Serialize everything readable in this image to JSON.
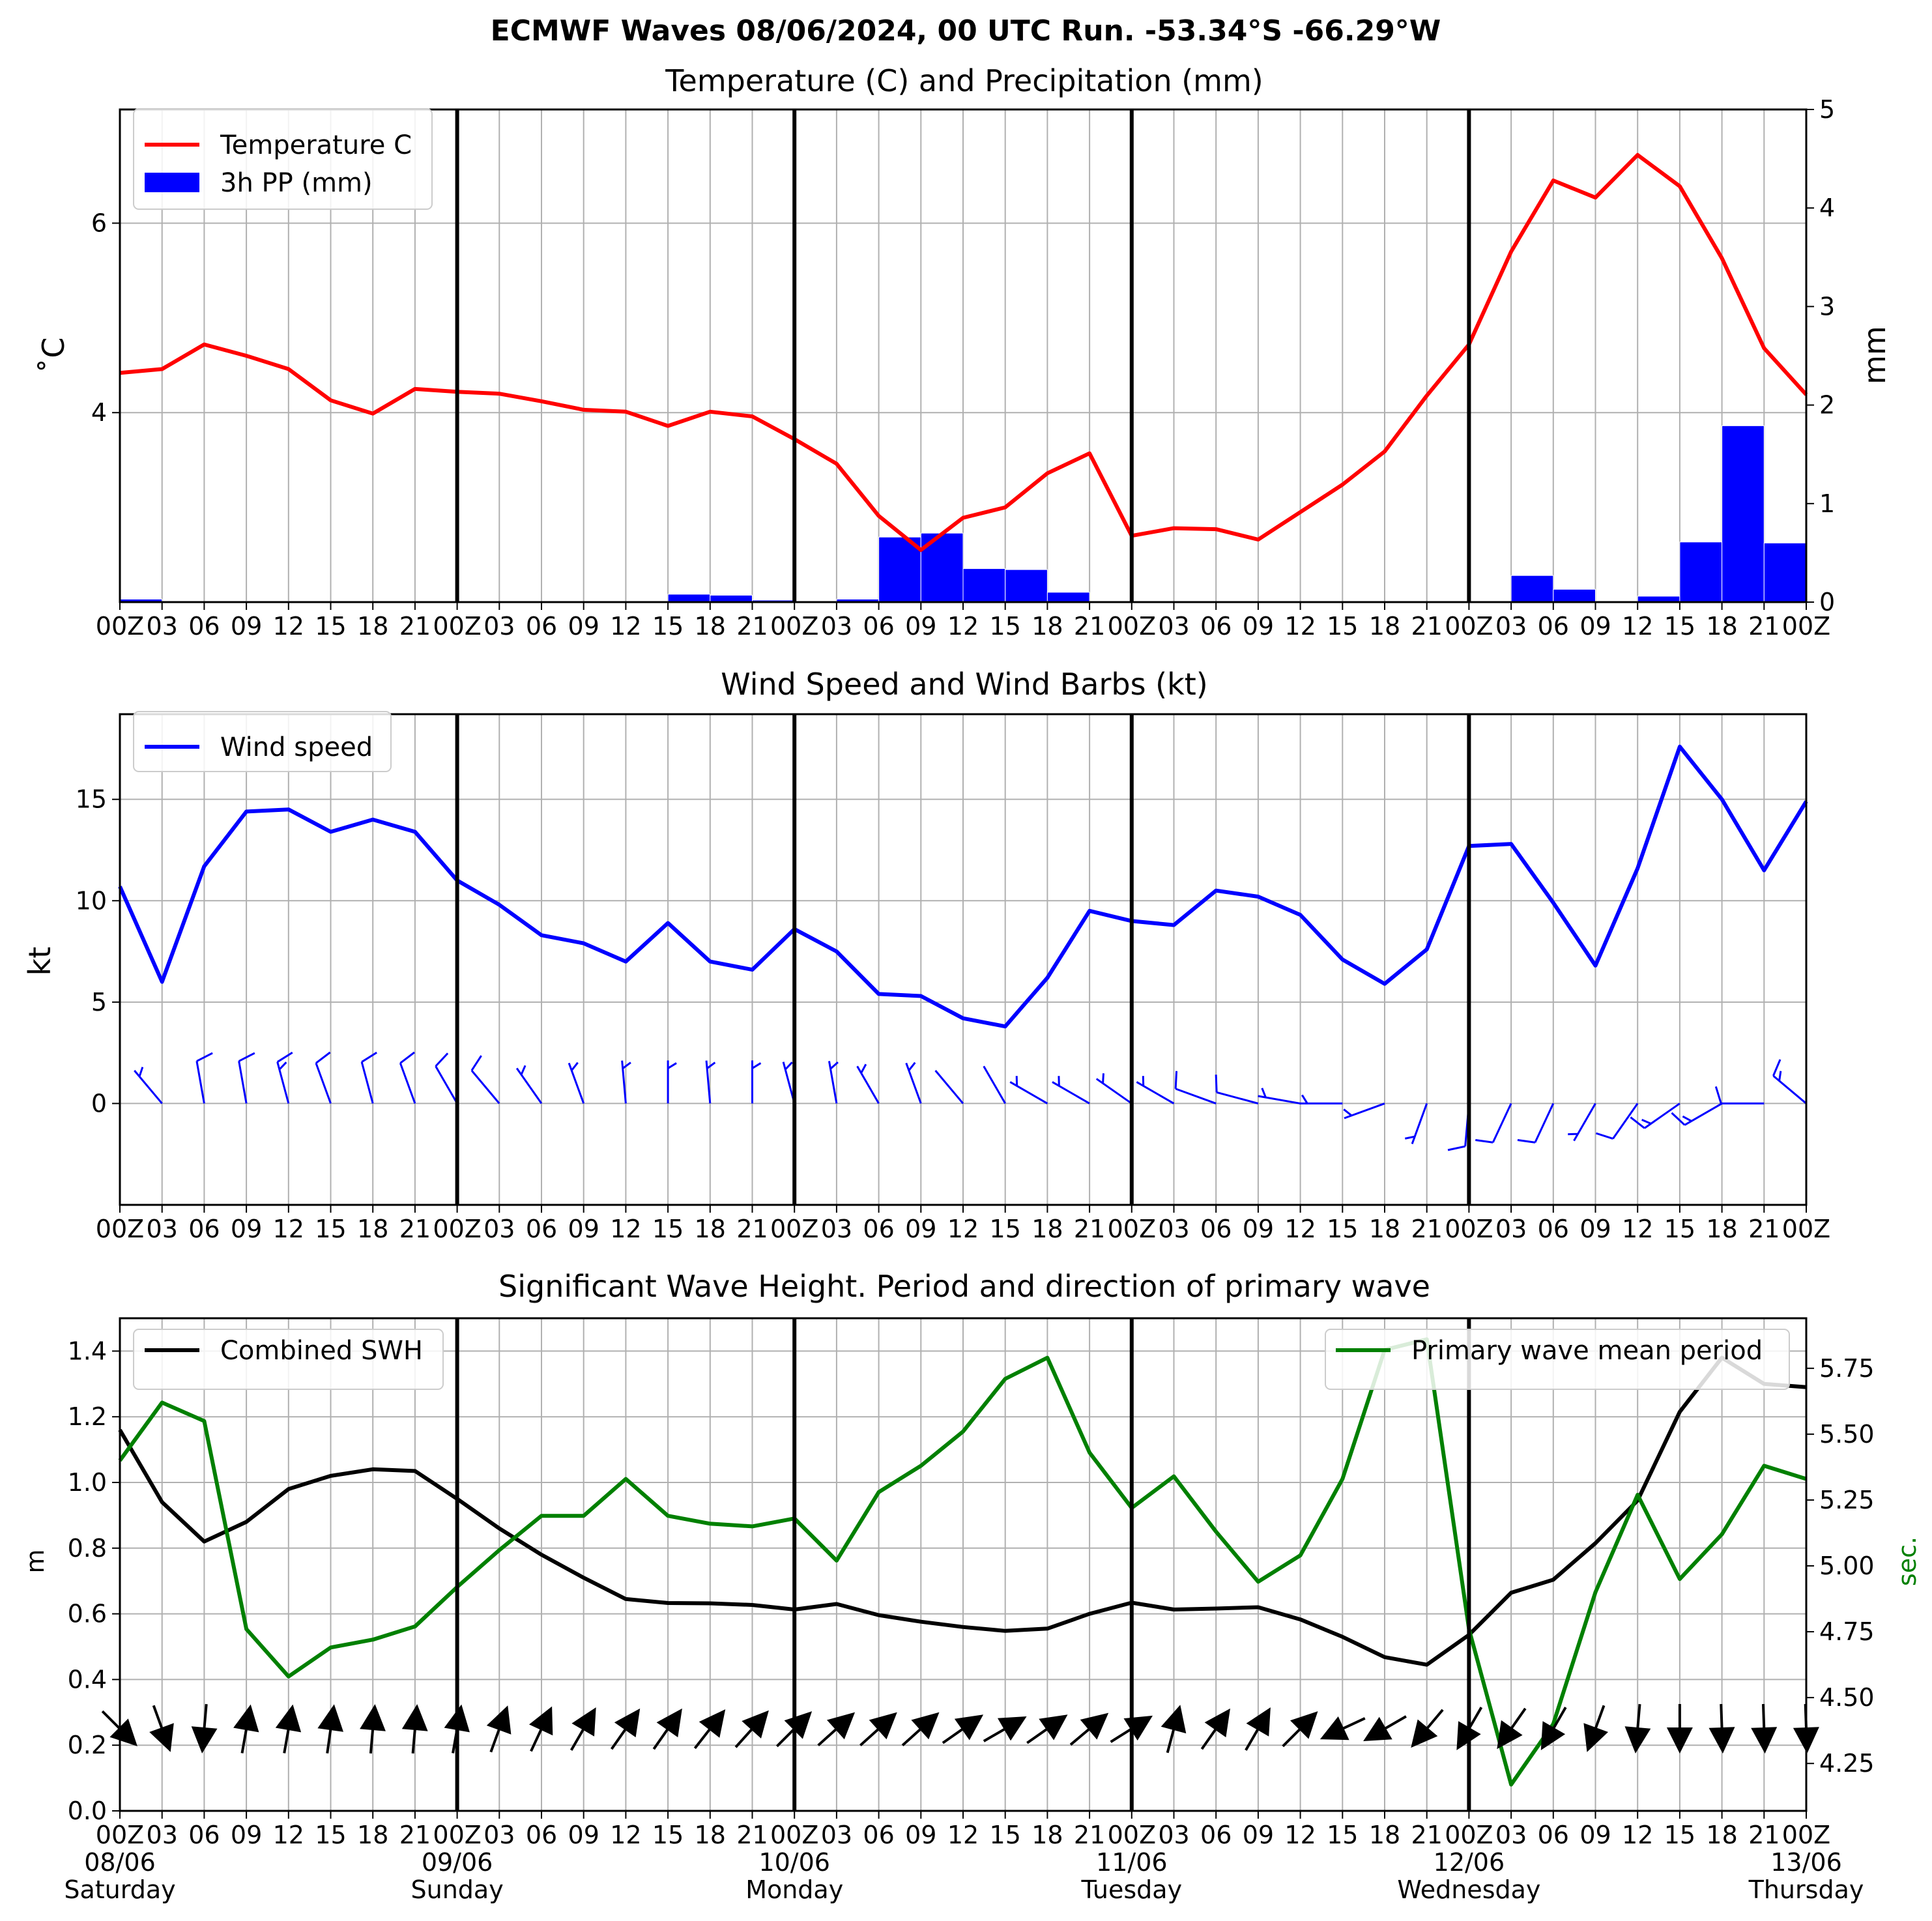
{
  "figure": {
    "suptitle": "ECMWF Waves 08/06/2024, 00 UTC Run. -53.34°S -66.29°W"
  },
  "x_ticks": [
    "00Z",
    "03",
    "06",
    "09",
    "12",
    "15",
    "18",
    "21",
    "00Z",
    "03",
    "06",
    "09",
    "12",
    "15",
    "18",
    "21",
    "00Z",
    "03",
    "06",
    "09",
    "12",
    "15",
    "18",
    "21",
    "00Z",
    "03",
    "06",
    "09",
    "12",
    "15",
    "18",
    "21",
    "00Z",
    "03",
    "06",
    "09",
    "12",
    "15",
    "18",
    "21",
    "00Z"
  ],
  "day_labels": [
    {
      "date": "08/06",
      "day": "Saturday"
    },
    {
      "date": "09/06",
      "day": "Sunday"
    },
    {
      "date": "10/06",
      "day": "Monday"
    },
    {
      "date": "11/06",
      "day": "Tuesday"
    },
    {
      "date": "12/06",
      "day": "Wednesday"
    },
    {
      "date": "13/06",
      "day": "Thursday"
    }
  ],
  "colors": {
    "temperature": "#ff0000",
    "precipitation": "#0000ff",
    "wind": "#0000ff",
    "swh": "#000000",
    "period": "#008000",
    "grid": "#b0b0b0"
  },
  "chart_data": [
    {
      "type": "line",
      "title": "Temperature (C) and Precipitation (mm)",
      "ylabel": "$^\\circ$C",
      "ylabel_display": "˚C",
      "ylabel_right": "mm",
      "ylim": [
        2.0,
        7.2
      ],
      "ylim_right": [
        0,
        5
      ],
      "yticks": [
        4,
        6
      ],
      "yticks_right": [
        0,
        1,
        2,
        3,
        4,
        5
      ],
      "grid": true,
      "legend_position": "upper left",
      "series": [
        {
          "name": "Temperature C",
          "axis": "left",
          "kind": "line",
          "values": [
            4.42,
            4.46,
            4.72,
            4.6,
            4.46,
            4.13,
            3.99,
            4.25,
            4.22,
            4.2,
            4.12,
            4.03,
            4.01,
            3.86,
            4.01,
            3.96,
            3.72,
            3.46,
            2.91,
            2.55,
            2.89,
            3.0,
            3.36,
            3.57,
            2.7,
            2.78,
            2.77,
            2.66,
            2.95,
            3.24,
            3.59,
            4.18,
            4.72,
            5.7,
            6.45,
            6.27,
            6.72,
            6.39,
            5.63,
            4.68,
            4.19
          ]
        },
        {
          "name": "3h PP (mm)",
          "axis": "right",
          "kind": "bar",
          "values": [
            0.03,
            0.0,
            0.0,
            0.01,
            0.0,
            0.0,
            0.0,
            0.0,
            0.0,
            0.0,
            0.0,
            0.0,
            0.0,
            0.08,
            0.07,
            0.02,
            0.01,
            0.03,
            0.66,
            0.7,
            0.34,
            0.33,
            0.1,
            0.0,
            0.0,
            0.0,
            0.0,
            0.0,
            0.0,
            0.0,
            0.0,
            0.0,
            0.01,
            0.27,
            0.13,
            0.01,
            0.06,
            0.61,
            1.79,
            0.6
          ]
        }
      ]
    },
    {
      "type": "line",
      "title": "Wind Speed and Wind Barbs (kt)",
      "ylabel": "kt",
      "ylim": [
        -5,
        19.2
      ],
      "yticks": [
        0,
        5,
        10,
        15
      ],
      "grid": true,
      "legend_position": "upper left",
      "series": [
        {
          "name": "Wind speed",
          "values": [
            10.7,
            6.0,
            11.7,
            14.4,
            14.5,
            13.4,
            14.0,
            13.4,
            11.0,
            9.8,
            8.3,
            7.9,
            7.0,
            8.9,
            7.0,
            6.6,
            8.6,
            7.5,
            5.4,
            5.3,
            4.2,
            3.8,
            6.2,
            9.5,
            9.0,
            8.8,
            10.5,
            10.2,
            9.3,
            7.1,
            5.9,
            7.6,
            12.7,
            12.8,
            9.9,
            6.8,
            11.6,
            17.6,
            15.0,
            11.5,
            14.9
          ]
        }
      ],
      "wind_barbs": [
        {
          "from_deg": 320,
          "speed_kt": 6
        },
        {
          "from_deg": 350,
          "speed_kt": 12
        },
        {
          "from_deg": 350,
          "speed_kt": 14
        },
        {
          "from_deg": 345,
          "speed_kt": 15
        },
        {
          "from_deg": 340,
          "speed_kt": 13
        },
        {
          "from_deg": 345,
          "speed_kt": 14
        },
        {
          "from_deg": 340,
          "speed_kt": 13
        },
        {
          "from_deg": 330,
          "speed_kt": 11
        },
        {
          "from_deg": 320,
          "speed_kt": 10
        },
        {
          "from_deg": 325,
          "speed_kt": 8
        },
        {
          "from_deg": 340,
          "speed_kt": 8
        },
        {
          "from_deg": 355,
          "speed_kt": 7
        },
        {
          "from_deg": 0,
          "speed_kt": 9
        },
        {
          "from_deg": 355,
          "speed_kt": 7
        },
        {
          "from_deg": 0,
          "speed_kt": 7
        },
        {
          "from_deg": 345,
          "speed_kt": 9
        },
        {
          "from_deg": 350,
          "speed_kt": 8
        },
        {
          "from_deg": 330,
          "speed_kt": 5
        },
        {
          "from_deg": 340,
          "speed_kt": 5
        },
        {
          "from_deg": 320,
          "speed_kt": 4
        },
        {
          "from_deg": 330,
          "speed_kt": 4
        },
        {
          "from_deg": 300,
          "speed_kt": 6
        },
        {
          "from_deg": 300,
          "speed_kt": 9
        },
        {
          "from_deg": 305,
          "speed_kt": 9
        },
        {
          "from_deg": 300,
          "speed_kt": 9
        },
        {
          "from_deg": 290,
          "speed_kt": 10
        },
        {
          "from_deg": 285,
          "speed_kt": 10
        },
        {
          "from_deg": 280,
          "speed_kt": 9
        },
        {
          "from_deg": 270,
          "speed_kt": 7
        },
        {
          "from_deg": 250,
          "speed_kt": 6
        },
        {
          "from_deg": 200,
          "speed_kt": 8
        },
        {
          "from_deg": 185,
          "speed_kt": 13
        },
        {
          "from_deg": 205,
          "speed_kt": 13
        },
        {
          "from_deg": 205,
          "speed_kt": 10
        },
        {
          "from_deg": 210,
          "speed_kt": 7
        },
        {
          "from_deg": 215,
          "speed_kt": 12
        },
        {
          "from_deg": 235,
          "speed_kt": 18
        },
        {
          "from_deg": 240,
          "speed_kt": 15
        },
        {
          "from_deg": 270,
          "speed_kt": 12
        },
        {
          "from_deg": 310,
          "speed_kt": 15
        }
      ]
    },
    {
      "type": "line",
      "title": "Significant Wave Height. Period and direction of primary wave",
      "ylabel": "m",
      "ylabel_right": "sec.",
      "ylim": [
        0.0,
        1.5
      ],
      "ylim_right": [
        4.07,
        5.94
      ],
      "yticks": [
        0.0,
        0.2,
        0.4,
        0.6,
        0.8,
        1.0,
        1.2,
        1.4
      ],
      "yticks_right": [
        4.25,
        4.5,
        4.75,
        5.0,
        5.25,
        5.5,
        5.75
      ],
      "grid": true,
      "series": [
        {
          "name": "Combined SWH",
          "axis": "left",
          "legend_position": "upper left",
          "values": [
            1.16,
            0.94,
            0.82,
            0.88,
            0.98,
            1.02,
            1.04,
            1.035,
            0.95,
            0.86,
            0.78,
            0.71,
            0.645,
            0.633,
            0.632,
            0.627,
            0.613,
            0.63,
            0.596,
            0.576,
            0.56,
            0.548,
            0.555,
            0.6,
            0.634,
            0.613,
            0.616,
            0.62,
            0.583,
            0.53,
            0.468,
            0.445,
            0.536,
            0.664,
            0.704,
            0.815,
            0.945,
            1.215,
            1.38,
            1.3,
            1.29
          ]
        },
        {
          "name": "Primary wave mean period",
          "axis": "right",
          "legend_position": "upper right",
          "values": [
            5.4,
            5.62,
            5.55,
            4.76,
            4.58,
            4.69,
            4.72,
            4.77,
            4.92,
            5.06,
            5.19,
            5.19,
            5.33,
            5.19,
            5.16,
            5.15,
            5.18,
            5.02,
            5.28,
            5.38,
            5.51,
            5.71,
            5.79,
            5.43,
            5.22,
            5.34,
            5.13,
            4.94,
            5.04,
            5.33,
            5.82,
            5.86,
            4.76,
            4.17,
            4.4,
            4.9,
            5.27,
            4.95,
            5.12,
            5.38,
            5.33
          ]
        }
      ],
      "wave_direction_arrows": [
        {
          "toward_deg": 135
        },
        {
          "toward_deg": 160
        },
        {
          "toward_deg": 185
        },
        {
          "toward_deg": 10
        },
        {
          "toward_deg": 10
        },
        {
          "toward_deg": 8
        },
        {
          "toward_deg": 5
        },
        {
          "toward_deg": 5
        },
        {
          "toward_deg": 10
        },
        {
          "toward_deg": 20
        },
        {
          "toward_deg": 25
        },
        {
          "toward_deg": 30
        },
        {
          "toward_deg": 35
        },
        {
          "toward_deg": 35
        },
        {
          "toward_deg": 38
        },
        {
          "toward_deg": 42
        },
        {
          "toward_deg": 45
        },
        {
          "toward_deg": 48
        },
        {
          "toward_deg": 48
        },
        {
          "toward_deg": 48
        },
        {
          "toward_deg": 55
        },
        {
          "toward_deg": 60
        },
        {
          "toward_deg": 55
        },
        {
          "toward_deg": 50
        },
        {
          "toward_deg": 58
        },
        {
          "toward_deg": 15
        },
        {
          "toward_deg": 35
        },
        {
          "toward_deg": 30
        },
        {
          "toward_deg": 45
        },
        {
          "toward_deg": 245
        },
        {
          "toward_deg": 240
        },
        {
          "toward_deg": 220
        },
        {
          "toward_deg": 210
        },
        {
          "toward_deg": 215
        },
        {
          "toward_deg": 210
        },
        {
          "toward_deg": 200
        },
        {
          "toward_deg": 185
        },
        {
          "toward_deg": 180
        },
        {
          "toward_deg": 178
        },
        {
          "toward_deg": 178
        },
        {
          "toward_deg": 178
        }
      ]
    }
  ]
}
